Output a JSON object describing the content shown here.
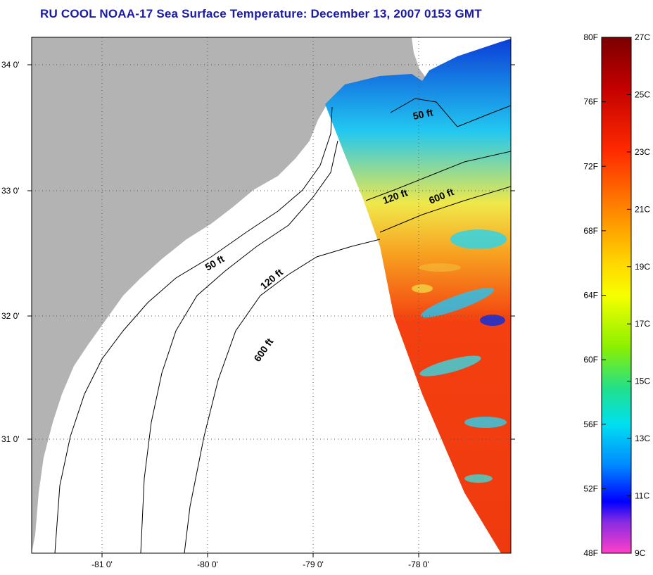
{
  "title": "RU COOL  NOAA-17  Sea Surface Temperature:  December 13, 2007 0153 GMT",
  "map": {
    "lat_ticks": [
      "34 0'",
      "33 0'",
      "32 0'",
      "31 0'"
    ],
    "lon_ticks": [
      "-81 0'",
      "-80 0'",
      "-79 0'",
      "-78 0'"
    ],
    "contours": [
      {
        "depth": "50 ft",
        "label": "50 ft"
      },
      {
        "depth": "50 ft",
        "label": "50 ft"
      },
      {
        "depth": "120 ft",
        "label": "120 ft"
      },
      {
        "depth": "120 ft",
        "label": "120 ft"
      },
      {
        "depth": "600 ft",
        "label": "600 ft"
      },
      {
        "depth": "600 ft",
        "label": "600 ft"
      }
    ],
    "colors": {
      "land": "#b3b3b3",
      "title": "#1a1aa6"
    }
  },
  "colorbar": {
    "fahrenheit": [
      "80F",
      "76F",
      "72F",
      "68F",
      "64F",
      "60F",
      "56F",
      "52F",
      "48F"
    ],
    "celsius": [
      "27C",
      "25C",
      "23C",
      "21C",
      "19C",
      "17C",
      "15C",
      "13C",
      "11C",
      "9C"
    ],
    "range_f": [
      48,
      80
    ],
    "range_c": [
      9,
      27
    ]
  }
}
